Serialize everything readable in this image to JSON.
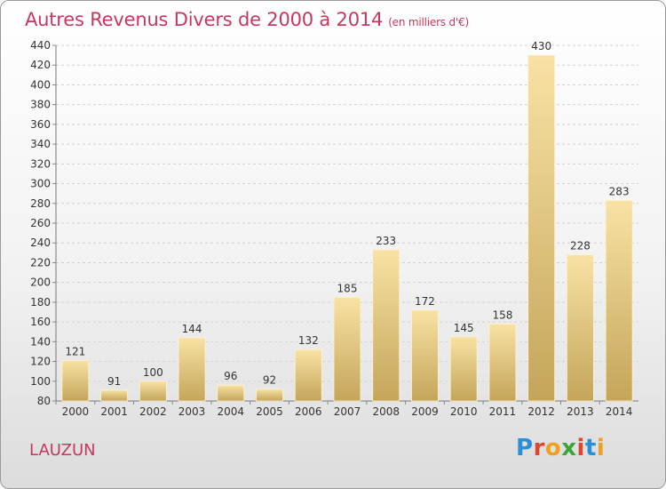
{
  "header": {
    "title": "Autres Revenus Divers de 2000 à 2014",
    "unit": "(en milliers d'€)"
  },
  "location": "LAUZUN",
  "brand": {
    "name": "Proxiti"
  },
  "chart_data": {
    "type": "bar",
    "title": "Autres Revenus Divers de 2000 à 2014",
    "subtitle": "(en milliers d'€)",
    "categories": [
      "2000",
      "2001",
      "2002",
      "2003",
      "2004",
      "2005",
      "2006",
      "2007",
      "2008",
      "2009",
      "2010",
      "2011",
      "2012",
      "2013",
      "2014"
    ],
    "values": [
      121,
      91,
      100,
      144,
      96,
      92,
      132,
      185,
      233,
      172,
      145,
      158,
      430,
      228,
      283
    ],
    "ylim": [
      80,
      440
    ],
    "yticks": [
      80,
      100,
      120,
      140,
      160,
      180,
      200,
      220,
      240,
      260,
      280,
      300,
      320,
      340,
      360,
      380,
      400,
      420,
      440
    ],
    "grid": true,
    "colors": {
      "bar_top": "#f8e2a4",
      "bar_bottom": "#c4a55a",
      "text": "#333333"
    }
  }
}
